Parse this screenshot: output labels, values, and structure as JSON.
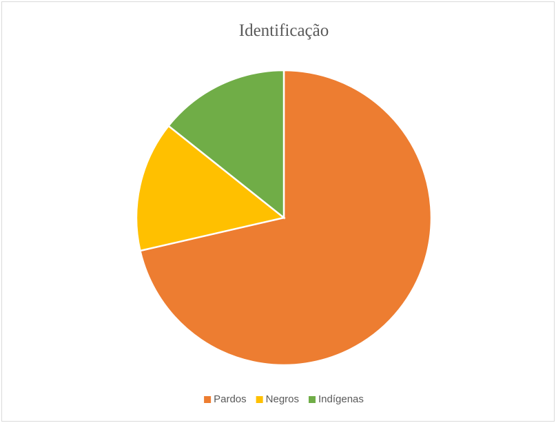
{
  "chart_data": {
    "type": "pie",
    "title": "Identificação",
    "categories": [
      "Pardos",
      "Negros",
      "Indígenas"
    ],
    "values": [
      71.4,
      14.3,
      14.3
    ],
    "colors": [
      "#ed7d31",
      "#ffc000",
      "#70ad47"
    ],
    "legend": "bottom"
  }
}
